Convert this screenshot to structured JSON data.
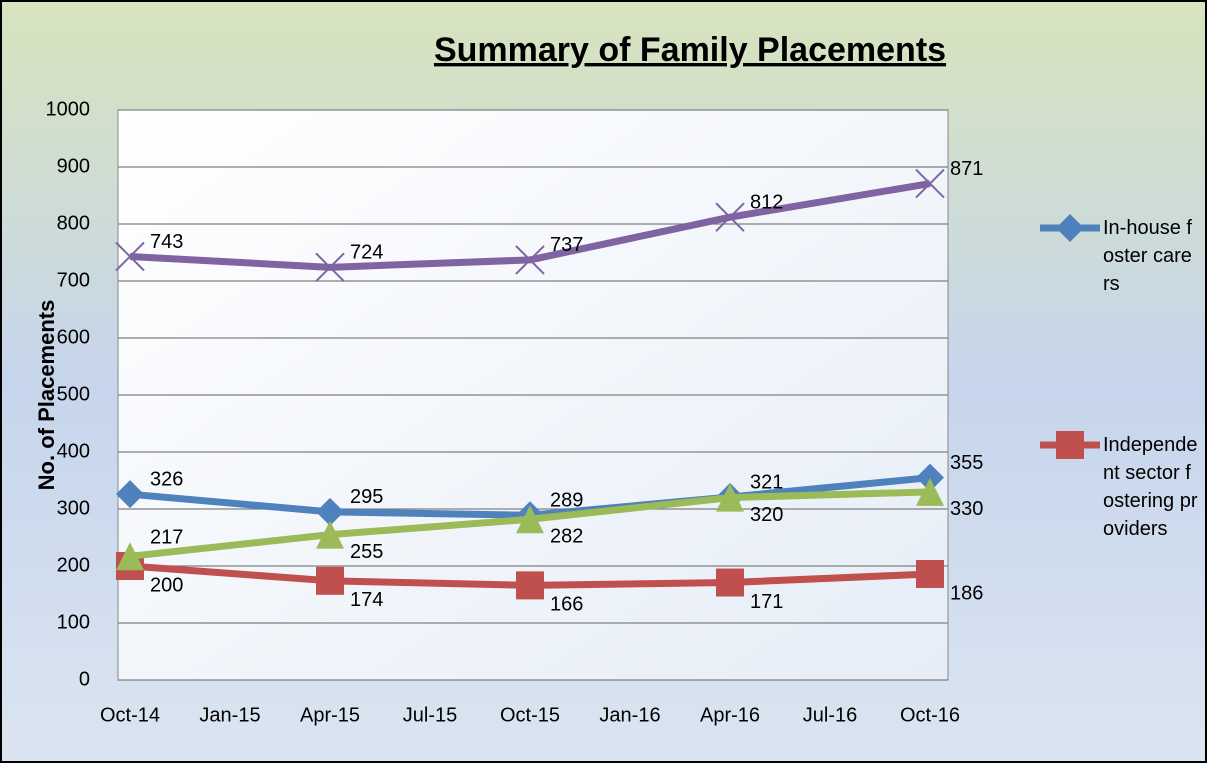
{
  "chart_data": {
    "type": "line",
    "title": "Summary of Family Placements",
    "y_label": "No. of Placements",
    "x": [
      "Oct-14",
      "Apr-15",
      "Oct-15",
      "Apr-16",
      "Oct-16"
    ],
    "xticks": [
      "Oct-14",
      "Jan-15",
      "Apr-15",
      "Jul-15",
      "Oct-15",
      "Jan-16",
      "Apr-16",
      "Jul-16",
      "Oct-16"
    ],
    "ylim": [
      0,
      1000
    ],
    "yticks": [
      0,
      100,
      200,
      300,
      400,
      500,
      600,
      700,
      800,
      900,
      1000
    ],
    "grid": true,
    "series": [
      {
        "name": "In-house foster carers",
        "color": "#4f81bd",
        "marker": "diamond",
        "values": [
          326,
          295,
          289,
          321,
          355
        ]
      },
      {
        "name": "Independent sector fostering providers",
        "color": "#c0504d",
        "marker": "square",
        "values": [
          200,
          174,
          166,
          171,
          186
        ]
      },
      {
        "color": "#9bbb59",
        "marker": "triangle",
        "values": [
          217,
          255,
          282,
          320,
          330
        ]
      },
      {
        "color": "#8064a2",
        "marker": "x",
        "values": [
          743,
          724,
          737,
          812,
          871
        ]
      }
    ]
  }
}
